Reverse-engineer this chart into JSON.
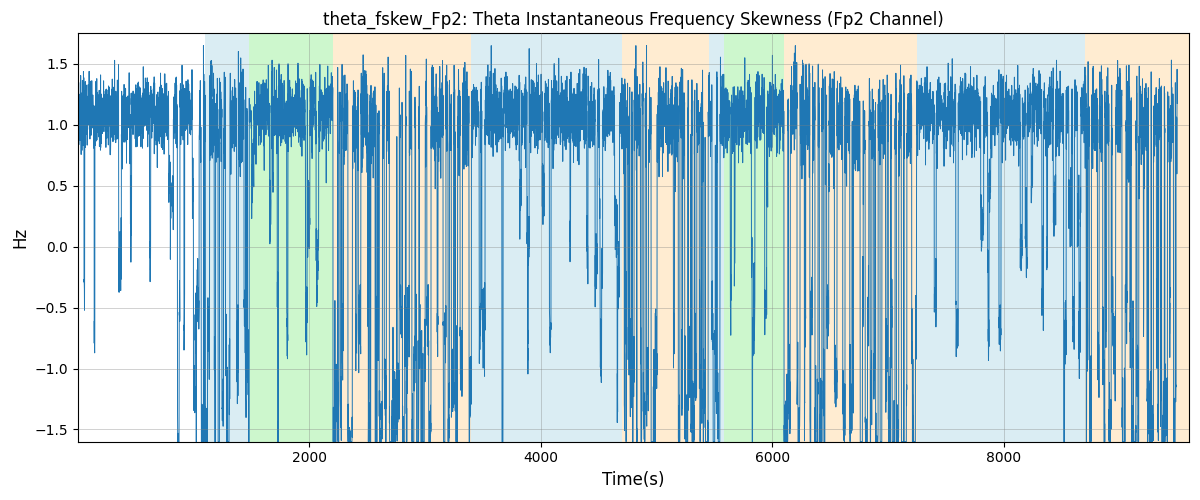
{
  "title": "theta_fskew_Fp2: Theta Instantaneous Frequency Skewness (Fp2 Channel)",
  "xlabel": "Time(s)",
  "ylabel": "Hz",
  "ylim": [
    -1.6,
    1.75
  ],
  "xlim": [
    0,
    9600
  ],
  "xticks": [
    2000,
    4000,
    6000,
    8000
  ],
  "bg_bands": [
    {
      "xmin": 1100,
      "xmax": 1480,
      "color": "#add8e6",
      "alpha": 0.45
    },
    {
      "xmin": 1480,
      "xmax": 2200,
      "color": "#90ee90",
      "alpha": 0.45
    },
    {
      "xmin": 2200,
      "xmax": 3400,
      "color": "#ffd59a",
      "alpha": 0.45
    },
    {
      "xmin": 3400,
      "xmax": 4700,
      "color": "#add8e6",
      "alpha": 0.45
    },
    {
      "xmin": 4700,
      "xmax": 5450,
      "color": "#ffd59a",
      "alpha": 0.45
    },
    {
      "xmin": 5450,
      "xmax": 5580,
      "color": "#add8e6",
      "alpha": 0.45
    },
    {
      "xmin": 5580,
      "xmax": 6100,
      "color": "#90ee90",
      "alpha": 0.45
    },
    {
      "xmin": 6100,
      "xmax": 7250,
      "color": "#ffd59a",
      "alpha": 0.45
    },
    {
      "xmin": 7250,
      "xmax": 7600,
      "color": "#add8e6",
      "alpha": 0.45
    },
    {
      "xmin": 7600,
      "xmax": 8700,
      "color": "#add8e6",
      "alpha": 0.45
    },
    {
      "xmin": 8700,
      "xmax": 9600,
      "color": "#ffd59a",
      "alpha": 0.45
    }
  ],
  "line_color": "#1f77b4",
  "line_width": 0.7,
  "grid_alpha": 0.5,
  "grid_linewidth": 0.5,
  "title_fontsize": 12,
  "seed": 7,
  "n_points": 9500
}
